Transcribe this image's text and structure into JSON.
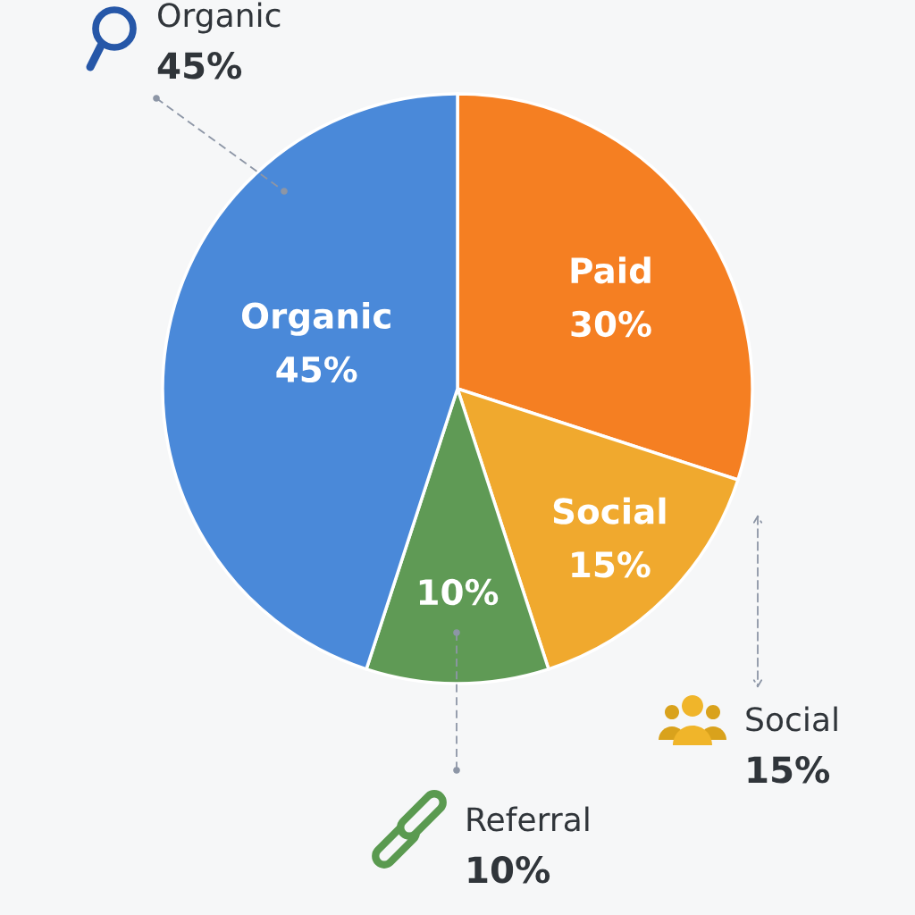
{
  "chart_data": {
    "type": "pie",
    "categories": [
      "Paid",
      "Social",
      null,
      "Organic"
    ],
    "values": [
      30,
      15,
      10,
      45
    ],
    "colors": [
      "#f57f22",
      "#f0a92e",
      "#5f9a55",
      "#4a89d9"
    ],
    "value_labels": [
      "30%",
      "15%",
      "10%",
      "45%"
    ],
    "annotations": [
      "Organic\n45%",
      "Social\n15%",
      "Referral\n10%"
    ]
  }
}
